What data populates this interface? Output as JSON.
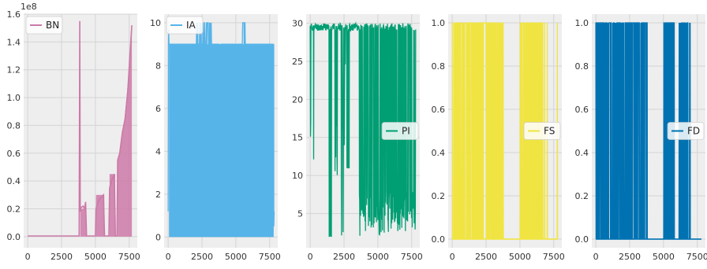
{
  "chart_data": [
    {
      "type": "line",
      "series": [
        {
          "name": "BN",
          "color": "#cc79a7"
        }
      ],
      "xlim": [
        -300,
        8100
      ],
      "ylim": [
        -0.08,
        1.6
      ],
      "xticks": [
        "0",
        "2500",
        "5000",
        "7500"
      ],
      "yticks": [
        "0.0",
        "0.2",
        "0.4",
        "0.6",
        "0.8",
        "1.0",
        "1.2",
        "1.4",
        "1.6"
      ],
      "offset_text": "1e8",
      "legend_position": "upper-left",
      "grid": true,
      "description_values": {
        "flat_until_x": 3800,
        "spike_at_x": 3850,
        "spike_y": 1.55,
        "end_y": 1.52
      },
      "points": [
        [
          0,
          0.005
        ],
        [
          3750,
          0.005
        ],
        [
          3800,
          0.005
        ],
        [
          3850,
          1.55
        ],
        [
          3880,
          0.18
        ],
        [
          3950,
          0.21
        ],
        [
          4100,
          0.22
        ],
        [
          4200,
          0.2
        ],
        [
          4280,
          0.25
        ],
        [
          4350,
          0.005
        ],
        [
          5000,
          0.005
        ],
        [
          5050,
          0.2
        ],
        [
          5200,
          0.25
        ],
        [
          5400,
          0.28
        ],
        [
          5600,
          0.3
        ],
        [
          5680,
          0.005
        ],
        [
          6000,
          0.005
        ],
        [
          6050,
          0.35
        ],
        [
          6200,
          0.4
        ],
        [
          6400,
          0.45
        ],
        [
          6480,
          0.005
        ],
        [
          6600,
          0.005
        ],
        [
          6650,
          0.55
        ],
        [
          6800,
          0.6
        ],
        [
          7000,
          0.75
        ],
        [
          7200,
          0.85
        ],
        [
          7400,
          1.05
        ],
        [
          7550,
          1.3
        ],
        [
          7700,
          1.52
        ]
      ]
    },
    {
      "type": "line",
      "series": [
        {
          "name": "IA",
          "color": "#56b4e9"
        }
      ],
      "xlim": [
        -300,
        8100
      ],
      "ylim": [
        -0.5,
        10.4
      ],
      "xticks": [
        "0",
        "2500",
        "5000",
        "7500"
      ],
      "yticks": [
        "0",
        "2",
        "4",
        "6",
        "8",
        "10"
      ],
      "legend_position": "upper-left",
      "grid": true
    },
    {
      "type": "line",
      "series": [
        {
          "name": "PI",
          "color": "#009e73"
        }
      ],
      "xlim": [
        -300,
        8100
      ],
      "ylim": [
        0.5,
        31.2
      ],
      "xticks": [
        "0",
        "2500",
        "5000",
        "7500"
      ],
      "yticks": [
        "5",
        "10",
        "15",
        "20",
        "25",
        "30"
      ],
      "legend_position": "center-right",
      "grid": true
    },
    {
      "type": "line",
      "series": [
        {
          "name": "FS",
          "color": "#f0e442"
        }
      ],
      "xlim": [
        -300,
        8100
      ],
      "ylim": [
        -0.04,
        1.04
      ],
      "xticks": [
        "0",
        "2500",
        "5000",
        "7500"
      ],
      "yticks": [
        "0.0",
        "0.2",
        "0.4",
        "0.6",
        "0.8",
        "1.0"
      ],
      "legend_position": "center-right",
      "grid": true
    },
    {
      "type": "line",
      "series": [
        {
          "name": "FD",
          "color": "#0072b2"
        }
      ],
      "xlim": [
        -300,
        8100
      ],
      "ylim": [
        -0.04,
        1.04
      ],
      "xticks": [
        "0",
        "2500",
        "5000",
        "7500"
      ],
      "yticks": [
        "0.0",
        "0.2",
        "0.4",
        "0.6",
        "0.8",
        "1.0"
      ],
      "legend_position": "center-right",
      "grid": true
    }
  ]
}
